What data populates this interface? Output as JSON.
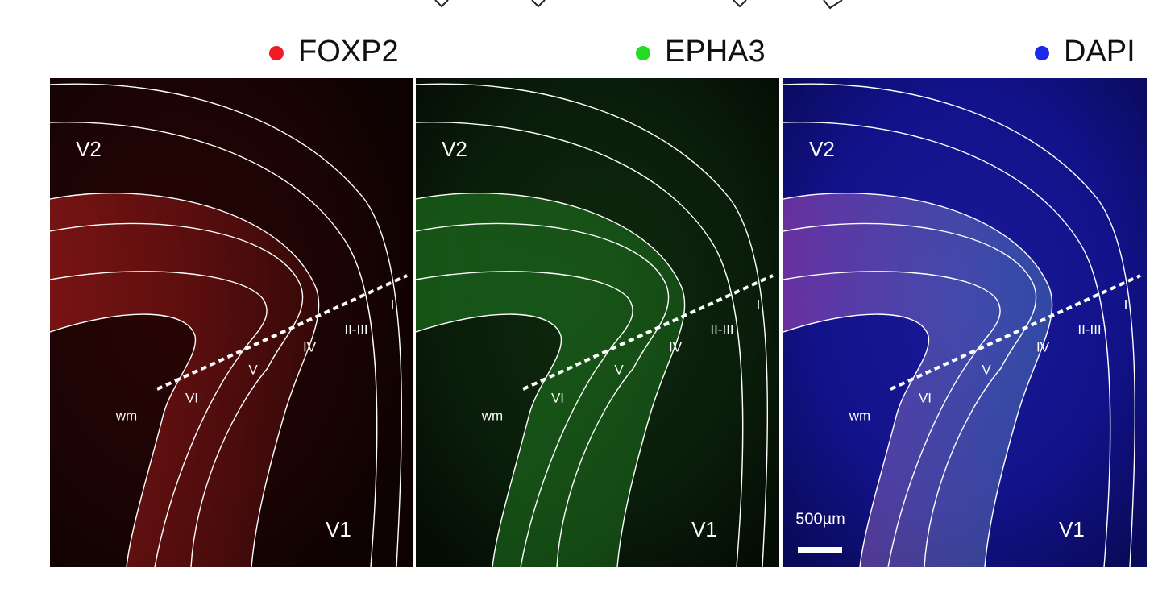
{
  "panels": [
    {
      "channel": "FOXP2",
      "labels": [
        "V2",
        "wm",
        "VI",
        "V",
        "IV",
        "II-III",
        "I",
        "V1"
      ]
    },
    {
      "channel": "EPHA3",
      "labels": [
        "V2",
        "wm",
        "VI",
        "V",
        "IV",
        "II-III",
        "I",
        "V1"
      ]
    },
    {
      "channel": "DAPI",
      "labels": [
        "V2",
        "wm",
        "VI",
        "V",
        "IV",
        "II-III",
        "I",
        "V1"
      ]
    }
  ],
  "scale_bar": "500µm"
}
